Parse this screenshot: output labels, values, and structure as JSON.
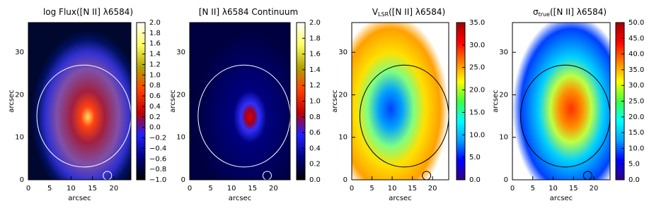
{
  "chart_data": [
    {
      "type": "heatmap",
      "title": {
        "main": "log Flux([N II] λ6584)"
      },
      "xlabel": "arcsec",
      "ylabel": "arcsec",
      "xlim": [
        0,
        24
      ],
      "xticks": [
        0,
        5,
        10,
        15,
        20
      ],
      "ylim": [
        0,
        37
      ],
      "yticks": [
        0,
        10,
        20,
        30
      ],
      "clim": [
        -1.0,
        2.0
      ],
      "colormap": [
        "#000000",
        "#000080",
        "#2020ff",
        "#c00000",
        "#ff4000",
        "#b0a000",
        "#ffff60",
        "#ffffff"
      ],
      "cticks": [
        {
          "value": -1.0,
          "label": "−1.0"
        },
        {
          "value": -0.8,
          "label": "−0.8"
        },
        {
          "value": -0.6,
          "label": "−0.6"
        },
        {
          "value": -0.4,
          "label": "−0.4"
        },
        {
          "value": -0.2,
          "label": "−0.2"
        },
        {
          "value": 0.0,
          "label": "0.0"
        },
        {
          "value": 0.2,
          "label": "0.2"
        },
        {
          "value": 0.4,
          "label": "0.4"
        },
        {
          "value": 0.6,
          "label": "0.6"
        },
        {
          "value": 0.8,
          "label": "0.8"
        },
        {
          "value": 1.0,
          "label": "1.0"
        },
        {
          "value": 1.2,
          "label": "1.2"
        },
        {
          "value": 1.4,
          "label": "1.4"
        },
        {
          "value": 1.6,
          "label": "1.6"
        },
        {
          "value": 1.8,
          "label": "1.8"
        },
        {
          "value": 2.0,
          "label": "2.0"
        }
      ]
    },
    {
      "type": "heatmap",
      "title": {
        "main": "[N II] λ6584 Continuum"
      },
      "xlabel": "arcsec",
      "ylabel": "arcsec",
      "xlim": [
        0,
        24
      ],
      "xticks": [
        0,
        5,
        10,
        15,
        20
      ],
      "ylim": [
        0,
        37
      ],
      "yticks": [
        0,
        10,
        20,
        30
      ],
      "clim": [
        0.0,
        2.0
      ],
      "colormap": [
        "#000000",
        "#000080",
        "#2020ff",
        "#c00000",
        "#ff4000",
        "#b0a000",
        "#ffff60",
        "#ffffff"
      ],
      "cticks": [
        {
          "value": 0.0,
          "label": "0.0"
        },
        {
          "value": 0.2,
          "label": "0.2"
        },
        {
          "value": 0.4,
          "label": "0.4"
        },
        {
          "value": 0.6,
          "label": "0.6"
        },
        {
          "value": 0.8,
          "label": "0.8"
        },
        {
          "value": 1.0,
          "label": "1.0"
        },
        {
          "value": 1.2,
          "label": "1.2"
        },
        {
          "value": 1.4,
          "label": "1.4"
        },
        {
          "value": 1.6,
          "label": "1.6"
        },
        {
          "value": 1.8,
          "label": "1.8"
        },
        {
          "value": 2.0,
          "label": "2.0"
        }
      ]
    },
    {
      "type": "heatmap",
      "title": {
        "main": "V",
        "sub": "LSR",
        "rest": "([N II] λ6584)"
      },
      "xlabel": "arcsec",
      "ylabel": "arcsec",
      "xlim": [
        0,
        24
      ],
      "xticks": [
        0,
        5,
        10,
        15,
        20
      ],
      "ylim": [
        0,
        37
      ],
      "yticks": [
        0,
        10,
        20,
        30
      ],
      "clim": [
        0.0,
        35.0
      ],
      "colormap": [
        "#300080",
        "#0000ff",
        "#00a0ff",
        "#00ffff",
        "#40ff40",
        "#ffff00",
        "#ff8000",
        "#ff0000",
        "#a00000"
      ],
      "cticks": [
        {
          "value": 0.0,
          "label": "0.0"
        },
        {
          "value": 5.0,
          "label": "5.0"
        },
        {
          "value": 10.0,
          "label": "10.0"
        },
        {
          "value": 15.0,
          "label": "15.0"
        },
        {
          "value": 20.0,
          "label": "20.0"
        },
        {
          "value": 25.0,
          "label": "25.0"
        },
        {
          "value": 30.0,
          "label": "30.0"
        },
        {
          "value": 35.0,
          "label": "35.0"
        }
      ]
    },
    {
      "type": "heatmap",
      "title": {
        "main": "σ",
        "sub": "true",
        "rest": "([N II] λ6584)"
      },
      "xlabel": "arcsec",
      "ylabel": "arcsec",
      "xlim": [
        0,
        24
      ],
      "xticks": [
        0,
        5,
        10,
        15,
        20
      ],
      "ylim": [
        0,
        37
      ],
      "yticks": [
        0,
        10,
        20,
        30
      ],
      "clim": [
        0.0,
        50.0
      ],
      "colormap": [
        "#300080",
        "#0000ff",
        "#00a0ff",
        "#00ffff",
        "#40ff40",
        "#ffff00",
        "#ff8000",
        "#ff0000",
        "#a00000"
      ],
      "cticks": [
        {
          "value": 0.0,
          "label": "0.0"
        },
        {
          "value": 5.0,
          "label": "5.0"
        },
        {
          "value": 10.0,
          "label": "10.0"
        },
        {
          "value": 15.0,
          "label": "15.0"
        },
        {
          "value": 20.0,
          "label": "20.0"
        },
        {
          "value": 25.0,
          "label": "25.0"
        },
        {
          "value": 30.0,
          "label": "30.0"
        },
        {
          "value": 35.0,
          "label": "35.0"
        },
        {
          "value": 40.0,
          "label": "40.0"
        },
        {
          "value": 45.0,
          "label": "45.0"
        },
        {
          "value": 50.0,
          "label": "50.0"
        }
      ]
    }
  ]
}
